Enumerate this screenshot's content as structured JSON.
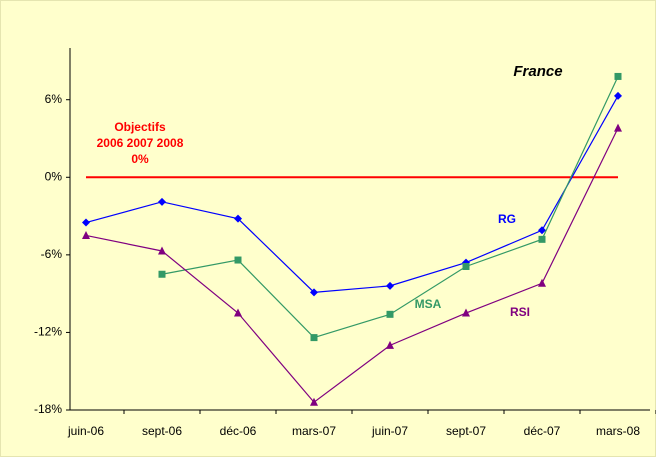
{
  "chart_data": {
    "type": "line",
    "title": "France",
    "categories": [
      "juin-06",
      "sept-06",
      "déc-06",
      "mars-07",
      "juin-07",
      "sept-07",
      "déc-07",
      "mars-08"
    ],
    "series": [
      {
        "name": "RG",
        "color": "#0000ff",
        "marker": "diamond",
        "values": [
          -3.5,
          -1.9,
          -3.2,
          -8.9,
          -8.4,
          -6.6,
          -4.1,
          6.3
        ]
      },
      {
        "name": "MSA",
        "color": "#339966",
        "marker": "square",
        "values": [
          null,
          -7.5,
          -6.4,
          -12.4,
          -10.6,
          -6.9,
          -4.8,
          7.8
        ]
      },
      {
        "name": "RSI",
        "color": "#800080",
        "marker": "triangle",
        "values": [
          -4.5,
          -5.7,
          -10.5,
          -17.4,
          -13.0,
          -10.5,
          -8.2,
          3.8
        ]
      }
    ],
    "ylim": [
      -18,
      10
    ],
    "yticks": [
      {
        "value": -18,
        "label": "-18%"
      },
      {
        "value": -12,
        "label": "-12%"
      },
      {
        "value": -6,
        "label": "-6%"
      },
      {
        "value": 0,
        "label": "0%"
      },
      {
        "value": 6,
        "label": "6%"
      }
    ],
    "reference_line": {
      "value": 0,
      "color": "#ff0000"
    },
    "annotation": [
      "Objectifs",
      "2006 2007 2008",
      "0%"
    ]
  }
}
